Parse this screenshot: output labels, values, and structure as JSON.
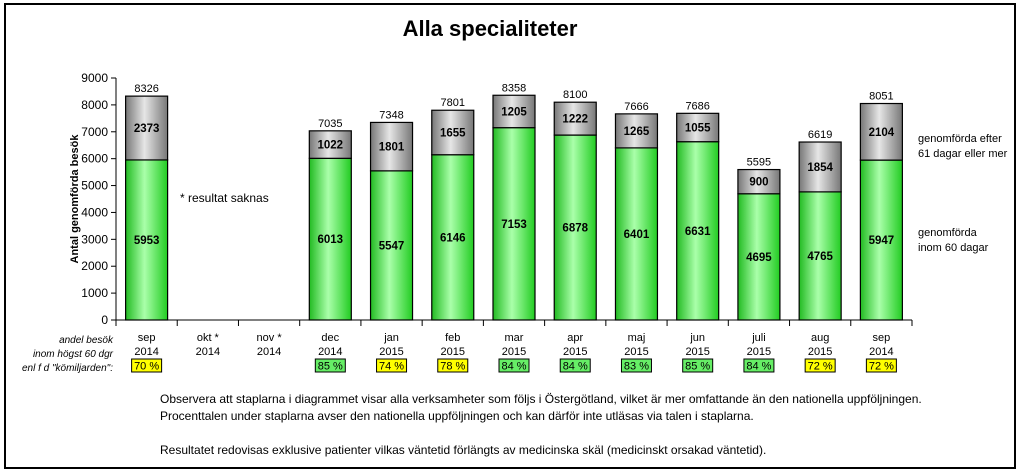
{
  "chart_data": {
    "type": "bar",
    "stacked": true,
    "title": "Alla specialiteter",
    "ylabel": "Antal genomförda besök",
    "ylim": [
      0,
      9000
    ],
    "yticks": [
      0,
      1000,
      2000,
      3000,
      4000,
      5000,
      6000,
      7000,
      8000,
      9000
    ],
    "grid": false,
    "categories": [
      {
        "month": "sep",
        "year": "2014"
      },
      {
        "month": "okt *",
        "year": "2014"
      },
      {
        "month": "nov *",
        "year": "2014"
      },
      {
        "month": "dec",
        "year": "2014"
      },
      {
        "month": "jan",
        "year": "2015"
      },
      {
        "month": "feb",
        "year": "2015"
      },
      {
        "month": "mar",
        "year": "2015"
      },
      {
        "month": "apr",
        "year": "2015"
      },
      {
        "month": "maj",
        "year": "2015"
      },
      {
        "month": "jun",
        "year": "2015"
      },
      {
        "month": "juli",
        "year": "2015"
      },
      {
        "month": "aug",
        "year": "2015"
      },
      {
        "month": "sep",
        "year": "2014"
      }
    ],
    "series": [
      {
        "name": "genomförda inom 60 dagar",
        "color": "#33dd33",
        "values": [
          5953,
          null,
          null,
          6013,
          5547,
          6146,
          7153,
          6878,
          6401,
          6631,
          4695,
          4765,
          5947
        ]
      },
      {
        "name": "genomförda efter 61 dagar eller mer",
        "color": "#888888",
        "values": [
          2373,
          null,
          null,
          1022,
          1801,
          1655,
          1205,
          1222,
          1265,
          1055,
          900,
          1854,
          2104
        ]
      }
    ],
    "totals": [
      8326,
      null,
      null,
      7035,
      7348,
      7801,
      8358,
      8100,
      7666,
      7686,
      5595,
      6619,
      8051
    ],
    "percentages": [
      {
        "text": "70 %",
        "status": "yellow"
      },
      {
        "text": "",
        "status": ""
      },
      {
        "text": "",
        "status": ""
      },
      {
        "text": "85 %",
        "status": "green"
      },
      {
        "text": "74 %",
        "status": "yellow"
      },
      {
        "text": "78 %",
        "status": "yellow"
      },
      {
        "text": "84 %",
        "status": "green"
      },
      {
        "text": "84 %",
        "status": "green"
      },
      {
        "text": "83 %",
        "status": "green"
      },
      {
        "text": "85 %",
        "status": "green"
      },
      {
        "text": "84 %",
        "status": "green"
      },
      {
        "text": "72 %",
        "status": "yellow"
      },
      {
        "text": "72 %",
        "status": "yellow"
      }
    ],
    "status_colors": {
      "green": "#66ee66",
      "yellow": "#ffff00"
    },
    "legend_right": {
      "upper": [
        "genomförda efter",
        "61 dagar eller mer"
      ],
      "lower": [
        "genomförda",
        "inom 60 dagar"
      ]
    },
    "annotation": "*  resultat saknas",
    "row_labels": [
      "andel besök",
      "inom högst 60 dgr",
      "enl  f d \"kömiljarden\":"
    ]
  },
  "notes": [
    "Observera att staplarna i diagrammet visar alla verksamheter som följs i Östergötland, vilket är mer omfattande än den nationella uppföljningen.",
    "Procenttalen under staplarna avser den nationella uppföljningen och kan därför inte utläsas via talen i staplarna.",
    "Resultatet redovisas exklusive patienter vilkas väntetid förlängts av medicinska skäl (medicinskt  orsakad väntetid)."
  ]
}
